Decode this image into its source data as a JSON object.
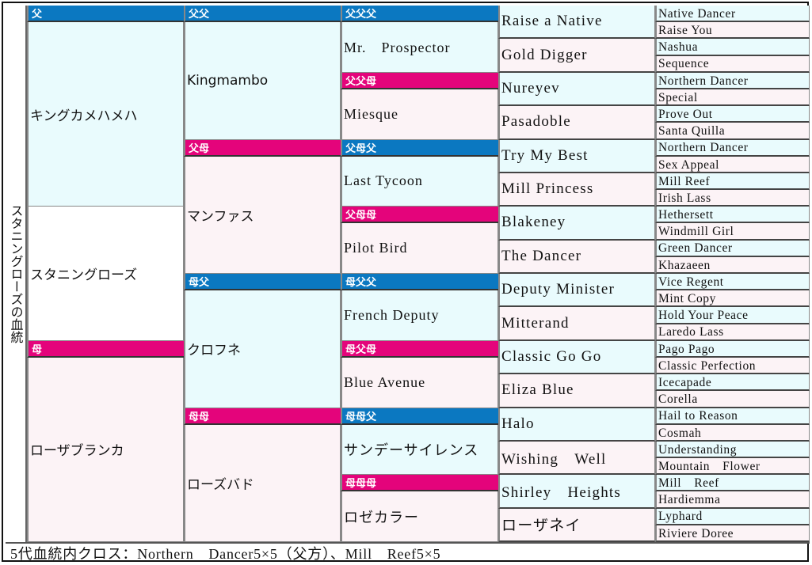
{
  "title": "スタニングローズの血統",
  "colors": {
    "sire_bar": "#0b78c1",
    "dam_bar": "#e4047b",
    "sire_cell": "#e9fbfd",
    "dam_cell": "#fcf3f6"
  },
  "gen1": {
    "sire": {
      "label": "父",
      "name": "キングカメハメハ"
    },
    "self": {
      "name": "スタニングローズ"
    },
    "dam": {
      "label": "母",
      "name": "ローザブランカ"
    }
  },
  "gen2": [
    {
      "label": "父父",
      "name": "Kingmambo"
    },
    {
      "label": "父母",
      "name": "マンファス"
    },
    {
      "label": "母父",
      "name": "クロフネ"
    },
    {
      "label": "母母",
      "name": "ローズバド"
    }
  ],
  "gen3": [
    {
      "label": "父父父",
      "name": "Mr.　Prospector"
    },
    {
      "label": "父父母",
      "name": "Miesque"
    },
    {
      "label": "父母父",
      "name": "Last Tycoon"
    },
    {
      "label": "父母母",
      "name": "Pilot Bird"
    },
    {
      "label": "母父父",
      "name": "French Deputy"
    },
    {
      "label": "母父母",
      "name": "Blue Avenue"
    },
    {
      "label": "母母父",
      "name": "サンデーサイレンス"
    },
    {
      "label": "母母母",
      "name": "ロゼカラー"
    }
  ],
  "gen4": [
    "Raise a Native",
    "Gold Digger",
    "Nureyev",
    "Pasadoble",
    "Try My Best",
    "Mill Princess",
    "Blakeney",
    "The Dancer",
    "Deputy Minister",
    "Mitterand",
    "Classic Go Go",
    "Eliza Blue",
    "Halo",
    "Wishing　Well",
    "Shirley　Heights",
    "ローザネイ"
  ],
  "gen5": [
    "Native Dancer",
    "Raise You",
    "Nashua",
    "Sequence",
    "Northern Dancer",
    "Special",
    "Prove Out",
    "Santa Quilla",
    "Northern Dancer",
    "Sex Appeal",
    "Mill Reef",
    "Irish Lass",
    "Hethersett",
    "Windmill Girl",
    "Green Dancer",
    "Khazaeen",
    "Vice Regent",
    "Mint Copy",
    "Hold Your Peace",
    "Laredo Lass",
    "Pago Pago",
    "Classic Perfection",
    "Icecapade",
    "Corella",
    "Hail to Reason",
    "Cosmah",
    "Understanding",
    "Mountain　Flower",
    "Mill　Reef",
    "Hardiemma",
    "Lyphard",
    "Riviere Doree"
  ],
  "footer": "5代血統内クロス：Northern　Dancer5×5（父方）、Mill　Reef5×5"
}
